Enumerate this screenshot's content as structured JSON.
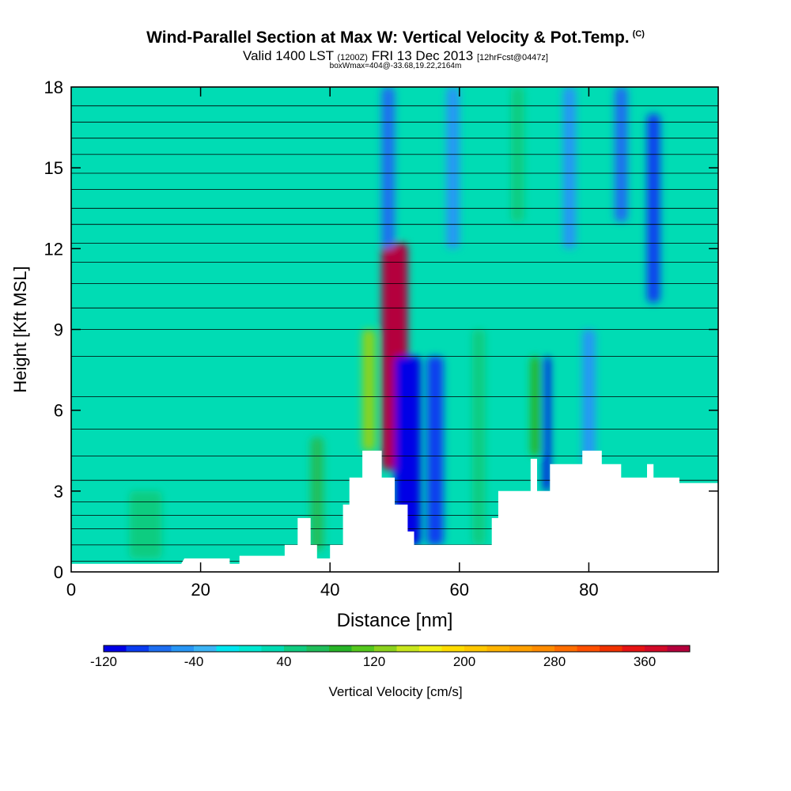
{
  "title": {
    "main": "Wind-Parallel Section at Max W: Vertical Velocity & Pot.Temp.",
    "copyright": "(C)",
    "valid_prefix": "Valid 1400 LST",
    "valid_utc": "(1200Z)",
    "valid_date": "FRI 13 Dec 2013",
    "forecast": "[12hrFcst@0447z]",
    "box_info": "boxWmax=404@-33.68,19.22,2164m"
  },
  "chart_data": {
    "type": "heatmap",
    "xlabel": "Distance [nm]",
    "ylabel": "Height [Kft MSL]",
    "xlim": [
      0,
      100
    ],
    "ylim": [
      0,
      18
    ],
    "x_ticks": [
      "0",
      "20",
      "40",
      "60",
      "80"
    ],
    "y_ticks": [
      "0",
      "3",
      "6",
      "9",
      "12",
      "15",
      "18"
    ],
    "colorbar": {
      "label": "Vertical Velocity [cm/s]",
      "tick_labels": [
        "-120",
        "-40",
        "40",
        "120",
        "200",
        "280",
        "360"
      ],
      "levels": [
        -120,
        -100,
        -80,
        -60,
        -40,
        -20,
        0,
        20,
        40,
        60,
        80,
        100,
        120,
        140,
        160,
        180,
        200,
        220,
        240,
        260,
        280,
        300,
        320,
        340,
        360,
        380,
        400
      ],
      "colors": [
        "#0000e6",
        "#0a3cf0",
        "#1e6ef0",
        "#2896f5",
        "#3cb4f5",
        "#00e6f0",
        "#00e8d2",
        "#00dcb4",
        "#10cc80",
        "#20be5a",
        "#28b428",
        "#55c81e",
        "#8cd21e",
        "#c8e61e",
        "#f0f014",
        "#ffdc00",
        "#ffc800",
        "#ffb400",
        "#ffa000",
        "#ff8c00",
        "#ff6e00",
        "#ff5000",
        "#f03200",
        "#e61414",
        "#d20a28",
        "#b4003c"
      ]
    },
    "background_w": 20,
    "cells": [
      {
        "x": [
          45,
          47
        ],
        "y": [
          4.5,
          9
        ],
        "w": 120
      },
      {
        "x": [
          48,
          52
        ],
        "y": [
          3.8,
          12.2
        ],
        "w": 404
      },
      {
        "x": [
          50,
          54
        ],
        "y": [
          1,
          8
        ],
        "w": -120
      },
      {
        "x": [
          55,
          57.5
        ],
        "y": [
          1,
          8
        ],
        "w": -100
      },
      {
        "x": [
          62,
          64
        ],
        "y": [
          1,
          9
        ],
        "w": 40
      },
      {
        "x": [
          73,
          74
        ],
        "y": [
          3,
          8
        ],
        "w": -120
      },
      {
        "x": [
          71,
          72.5
        ],
        "y": [
          4.3,
          8
        ],
        "w": 80
      },
      {
        "x": [
          79,
          81
        ],
        "y": [
          4,
          9
        ],
        "w": -60
      },
      {
        "x": [
          89,
          91
        ],
        "y": [
          10,
          17
        ],
        "w": -100
      },
      {
        "x": [
          37,
          39
        ],
        "y": [
          0.8,
          5
        ],
        "w": 60
      },
      {
        "x": [
          9,
          14
        ],
        "y": [
          0.5,
          3
        ],
        "w": 40
      },
      {
        "x": [
          48,
          50
        ],
        "y": [
          12,
          18
        ],
        "w": -80
      },
      {
        "x": [
          58,
          60
        ],
        "y": [
          12,
          18
        ],
        "w": -60
      },
      {
        "x": [
          68,
          70
        ],
        "y": [
          13,
          18
        ],
        "w": 40
      },
      {
        "x": [
          76,
          78
        ],
        "y": [
          12,
          18
        ],
        "w": -60
      },
      {
        "x": [
          84,
          86
        ],
        "y": [
          13,
          18
        ],
        "w": -80
      }
    ],
    "terrain": [
      [
        0,
        0.3
      ],
      [
        17,
        0.3
      ],
      [
        17.5,
        0.5
      ],
      [
        24.5,
        0.5
      ],
      [
        24.5,
        0.3
      ],
      [
        26,
        0.3
      ],
      [
        26,
        0.6
      ],
      [
        33,
        0.6
      ],
      [
        33,
        1
      ],
      [
        35,
        1
      ],
      [
        35,
        2
      ],
      [
        37,
        2
      ],
      [
        37,
        1
      ],
      [
        38,
        1
      ],
      [
        38,
        0.5
      ],
      [
        40,
        0.5
      ],
      [
        40,
        1
      ],
      [
        42,
        1
      ],
      [
        42,
        2.5
      ],
      [
        43,
        2.5
      ],
      [
        43,
        3.5
      ],
      [
        45,
        3.5
      ],
      [
        45,
        4.5
      ],
      [
        48,
        4.5
      ],
      [
        48,
        3.5
      ],
      [
        50,
        3.5
      ],
      [
        50,
        2.5
      ],
      [
        52,
        2.5
      ],
      [
        52,
        1.5
      ],
      [
        53,
        1.5
      ],
      [
        53,
        1
      ],
      [
        65,
        1
      ],
      [
        65,
        2
      ],
      [
        66,
        2
      ],
      [
        66,
        3
      ],
      [
        71,
        3
      ],
      [
        71,
        4.2
      ],
      [
        72,
        4.2
      ],
      [
        72,
        3
      ],
      [
        74,
        3
      ],
      [
        74,
        4
      ],
      [
        79,
        4
      ],
      [
        79,
        4.5
      ],
      [
        82,
        4.5
      ],
      [
        82,
        4
      ],
      [
        85,
        4
      ],
      [
        85,
        3.5
      ],
      [
        89,
        3.5
      ],
      [
        89,
        4
      ],
      [
        90,
        4
      ],
      [
        90,
        3.5
      ],
      [
        94,
        3.5
      ],
      [
        94,
        3.3
      ],
      [
        100,
        3.3
      ]
    ],
    "theta_contours": [
      [
        [
          0,
          0.4
        ],
        [
          100,
          0.4
        ]
      ],
      [
        [
          0,
          1.0
        ],
        [
          100,
          1.0
        ]
      ],
      [
        [
          0,
          1.6
        ],
        [
          100,
          1.6
        ]
      ],
      [
        [
          0,
          2.1
        ],
        [
          100,
          2.1
        ]
      ],
      [
        [
          0,
          2.6
        ],
        [
          100,
          2.6
        ]
      ],
      [
        [
          0,
          3.4
        ],
        [
          100,
          3.4
        ]
      ],
      [
        [
          0,
          4.3
        ],
        [
          100,
          4.3
        ]
      ],
      [
        [
          0,
          5.3
        ],
        [
          100,
          5.3
        ]
      ],
      [
        [
          0,
          6.5
        ],
        [
          100,
          6.5
        ]
      ],
      [
        [
          0,
          8.0
        ],
        [
          100,
          8.0
        ]
      ],
      [
        [
          0,
          9.0
        ],
        [
          100,
          9.0
        ]
      ],
      [
        [
          0,
          9.8
        ],
        [
          100,
          9.8
        ]
      ],
      [
        [
          0,
          10.7
        ],
        [
          100,
          10.7
        ]
      ],
      [
        [
          0,
          11.5
        ],
        [
          100,
          11.5
        ]
      ],
      [
        [
          0,
          12.2
        ],
        [
          100,
          12.2
        ]
      ],
      [
        [
          0,
          12.9
        ],
        [
          100,
          12.9
        ]
      ],
      [
        [
          0,
          13.5
        ],
        [
          100,
          13.5
        ]
      ],
      [
        [
          0,
          14.2
        ],
        [
          100,
          14.2
        ]
      ],
      [
        [
          0,
          14.8
        ],
        [
          100,
          14.8
        ]
      ],
      [
        [
          0,
          15.5
        ],
        [
          100,
          15.5
        ]
      ],
      [
        [
          0,
          16.1
        ],
        [
          100,
          16.1
        ]
      ],
      [
        [
          0,
          16.7
        ],
        [
          100,
          16.7
        ]
      ],
      [
        [
          0,
          17.3
        ],
        [
          100,
          17.3
        ]
      ]
    ]
  }
}
